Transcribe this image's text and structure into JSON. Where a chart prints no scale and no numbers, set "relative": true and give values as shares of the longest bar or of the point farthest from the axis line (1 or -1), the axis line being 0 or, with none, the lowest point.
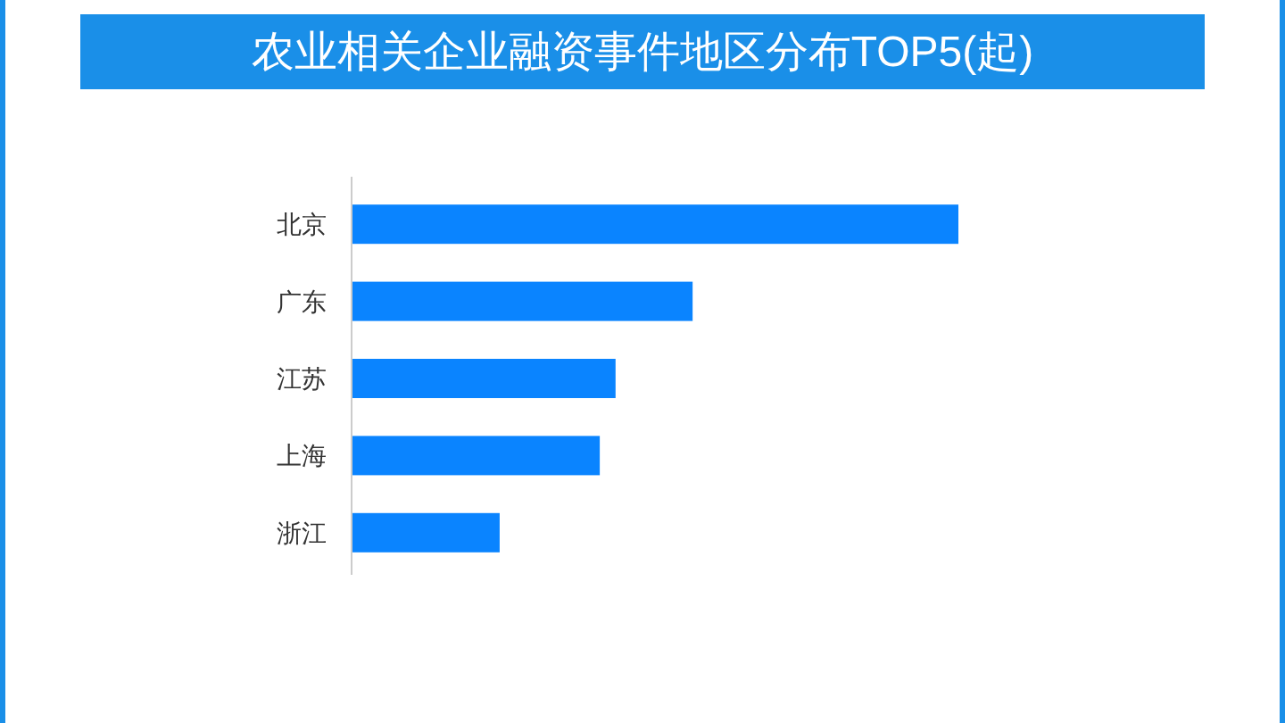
{
  "chart_data": {
    "type": "bar",
    "orientation": "horizontal",
    "relative": true,
    "title": "农业相关企业融资事件地区分布TOP5(起)",
    "categories": [
      "北京",
      "广东",
      "江苏",
      "上海",
      "浙江"
    ],
    "values": [
      1,
      0.562,
      0.435,
      0.409,
      0.244
    ],
    "color": "#0a84ff",
    "grid": false
  }
}
